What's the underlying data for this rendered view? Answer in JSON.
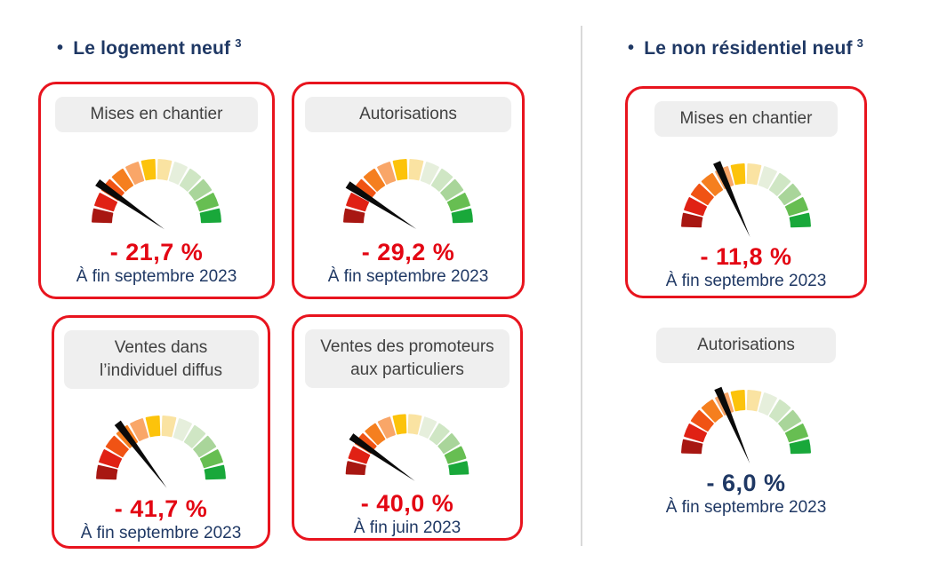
{
  "colors": {
    "background": "#ffffff",
    "title_navy": "#1f3864",
    "date_navy": "#1f3864",
    "value_red": "#e30613",
    "value_blue": "#1f3864",
    "card_border_red": "#e8141e",
    "pill_bg": "#efefef",
    "pill_text": "#404040",
    "divider_gray": "#d9d9d9"
  },
  "gauge": {
    "segments": 12,
    "start_angle_deg": 180,
    "end_angle_deg": 0,
    "needle_color": "#0a0a0a",
    "segment_colors": [
      "#a81712",
      "#e02114",
      "#f05314",
      "#f57f1f",
      "#f9a668",
      "#fcc30b",
      "#fae3a2",
      "#e6efdc",
      "#cfe6c4",
      "#a9d59a",
      "#67be52",
      "#19a83a"
    ]
  },
  "left_section": {
    "bullet": "•",
    "title": "Le logement neuf",
    "title_superscript": "3",
    "cards": [
      {
        "label": "Mises en chantier",
        "value": "- 21,7 %",
        "date": "À fin septembre 2023",
        "needle_angle_deg": 145,
        "value_color": "#e30613"
      },
      {
        "label": "Autorisations",
        "value": "- 29,2 %",
        "date": "À fin septembre 2023",
        "needle_angle_deg": 147,
        "value_color": "#e30613"
      },
      {
        "label": "Ventes dans\nl’individuel diffus",
        "value": "- 41,7 %",
        "date": "À fin septembre 2023",
        "needle_angle_deg": 127,
        "value_color": "#e30613"
      },
      {
        "label": "Ventes des promoteurs\naux particuliers",
        "value": "- 40,0 %",
        "date": "À fin juin 2023",
        "needle_angle_deg": 145,
        "value_color": "#e30613"
      }
    ]
  },
  "right_section": {
    "bullet": "•",
    "title": "Le non résidentiel neuf",
    "title_superscript": "3",
    "cards": [
      {
        "label": "Mises en chantier",
        "value": "- 11,8 %",
        "date": "À fin septembre 2023",
        "needle_angle_deg": 114,
        "value_color": "#e30613"
      },
      {
        "label": "Autorisations",
        "value": "- 6,0 %",
        "date": "À fin septembre 2023",
        "needle_angle_deg": 113,
        "value_color": "#1f3864"
      }
    ]
  },
  "chart_data": [
    {
      "type": "gauge",
      "section": "Le logement neuf",
      "title": "Mises en chantier",
      "value_pct": -21.7,
      "as_of": "À fin septembre 2023",
      "dial": "12-segment red-to-green half dial"
    },
    {
      "type": "gauge",
      "section": "Le logement neuf",
      "title": "Autorisations",
      "value_pct": -29.2,
      "as_of": "À fin septembre 2023",
      "dial": "12-segment red-to-green half dial"
    },
    {
      "type": "gauge",
      "section": "Le logement neuf",
      "title": "Ventes dans l’individuel diffus",
      "value_pct": -41.7,
      "as_of": "À fin septembre 2023",
      "dial": "12-segment red-to-green half dial"
    },
    {
      "type": "gauge",
      "section": "Le logement neuf",
      "title": "Ventes des promoteurs aux particuliers",
      "value_pct": -40.0,
      "as_of": "À fin juin 2023",
      "dial": "12-segment red-to-green half dial"
    },
    {
      "type": "gauge",
      "section": "Le non résidentiel neuf",
      "title": "Mises en chantier",
      "value_pct": -11.8,
      "as_of": "À fin septembre 2023",
      "dial": "12-segment red-to-green half dial"
    },
    {
      "type": "gauge",
      "section": "Le non résidentiel neuf",
      "title": "Autorisations",
      "value_pct": -6.0,
      "as_of": "À fin septembre 2023",
      "dial": "12-segment red-to-green half dial"
    }
  ]
}
